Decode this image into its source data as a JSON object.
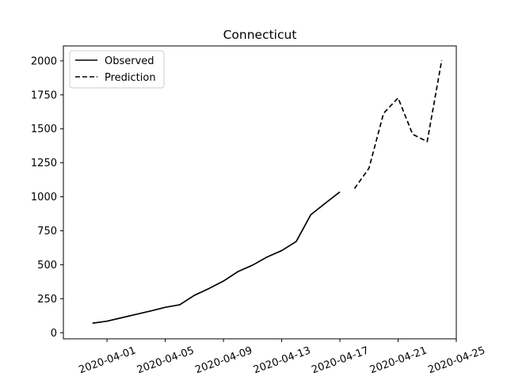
{
  "chart_data": {
    "type": "line",
    "title": "Connecticut",
    "xlabel": "",
    "ylabel": "",
    "x_type": "date",
    "xlim": [
      "2020-03-29",
      "2020-04-25"
    ],
    "ylim": [
      -45,
      2110
    ],
    "x_ticks": [
      "2020-04-01",
      "2020-04-05",
      "2020-04-09",
      "2020-04-13",
      "2020-04-17",
      "2020-04-21",
      "2020-04-25"
    ],
    "y_ticks": [
      0,
      250,
      500,
      750,
      1000,
      1250,
      1500,
      1750,
      2000
    ],
    "legend_position": "top-left",
    "grid": false,
    "series": [
      {
        "name": "Observed",
        "style": "solid",
        "color": "#000000",
        "points": [
          {
            "x": "2020-03-31",
            "y": 70
          },
          {
            "x": "2020-04-01",
            "y": 85
          },
          {
            "x": "2020-04-02",
            "y": 110
          },
          {
            "x": "2020-04-03",
            "y": 135
          },
          {
            "x": "2020-04-04",
            "y": 160
          },
          {
            "x": "2020-04-05",
            "y": 187
          },
          {
            "x": "2020-04-06",
            "y": 206
          },
          {
            "x": "2020-04-07",
            "y": 275
          },
          {
            "x": "2020-04-08",
            "y": 325
          },
          {
            "x": "2020-04-09",
            "y": 380
          },
          {
            "x": "2020-04-10",
            "y": 450
          },
          {
            "x": "2020-04-11",
            "y": 497
          },
          {
            "x": "2020-04-12",
            "y": 557
          },
          {
            "x": "2020-04-13",
            "y": 604
          },
          {
            "x": "2020-04-14",
            "y": 671
          },
          {
            "x": "2020-04-15",
            "y": 868
          },
          {
            "x": "2020-04-16",
            "y": 953
          },
          {
            "x": "2020-04-17",
            "y": 1036
          }
        ]
      },
      {
        "name": "Prediction",
        "style": "dashed",
        "color": "#000000",
        "points": [
          {
            "x": "2020-04-18",
            "y": 1060
          },
          {
            "x": "2020-04-19",
            "y": 1210
          },
          {
            "x": "2020-04-20",
            "y": 1614
          },
          {
            "x": "2020-04-21",
            "y": 1727
          },
          {
            "x": "2020-04-22",
            "y": 1460
          },
          {
            "x": "2020-04-23",
            "y": 1406
          },
          {
            "x": "2020-04-24",
            "y": 2006
          }
        ]
      }
    ]
  }
}
